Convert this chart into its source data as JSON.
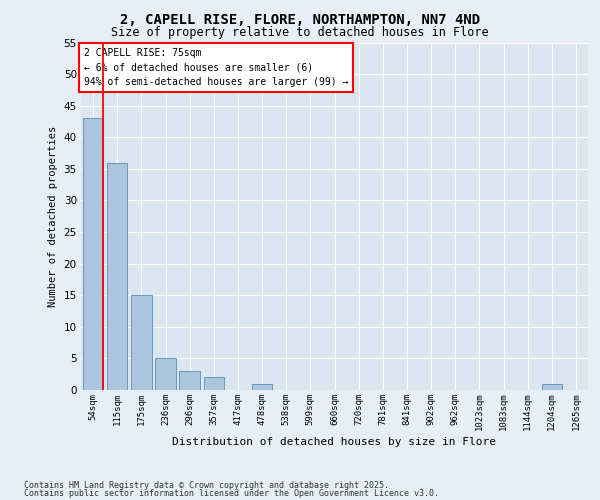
{
  "title1": "2, CAPELL RISE, FLORE, NORTHAMPTON, NN7 4ND",
  "title2": "Size of property relative to detached houses in Flore",
  "xlabel": "Distribution of detached houses by size in Flore",
  "ylabel": "Number of detached properties",
  "categories": [
    "54sqm",
    "115sqm",
    "175sqm",
    "236sqm",
    "296sqm",
    "357sqm",
    "417sqm",
    "478sqm",
    "538sqm",
    "599sqm",
    "660sqm",
    "720sqm",
    "781sqm",
    "841sqm",
    "902sqm",
    "962sqm",
    "1023sqm",
    "1083sqm",
    "1144sqm",
    "1204sqm",
    "1265sqm"
  ],
  "values": [
    43,
    36,
    15,
    5,
    3,
    2,
    0,
    1,
    0,
    0,
    0,
    0,
    0,
    0,
    0,
    0,
    0,
    0,
    0,
    1,
    0
  ],
  "bar_color": "#adc6e0",
  "bar_edge_color": "#6699bb",
  "highlight_color": "#cc0000",
  "annotation_line1": "2 CAPELL RISE: 75sqm",
  "annotation_line2": "← 6% of detached houses are smaller (6)",
  "annotation_line3": "94% of semi-detached houses are larger (99) →",
  "ylim": [
    0,
    55
  ],
  "yticks": [
    0,
    5,
    10,
    15,
    20,
    25,
    30,
    35,
    40,
    45,
    50,
    55
  ],
  "footnote1": "Contains HM Land Registry data © Crown copyright and database right 2025.",
  "footnote2": "Contains public sector information licensed under the Open Government Licence v3.0.",
  "bg_color": "#e8eef5",
  "plot_bg_color": "#dce6f0"
}
